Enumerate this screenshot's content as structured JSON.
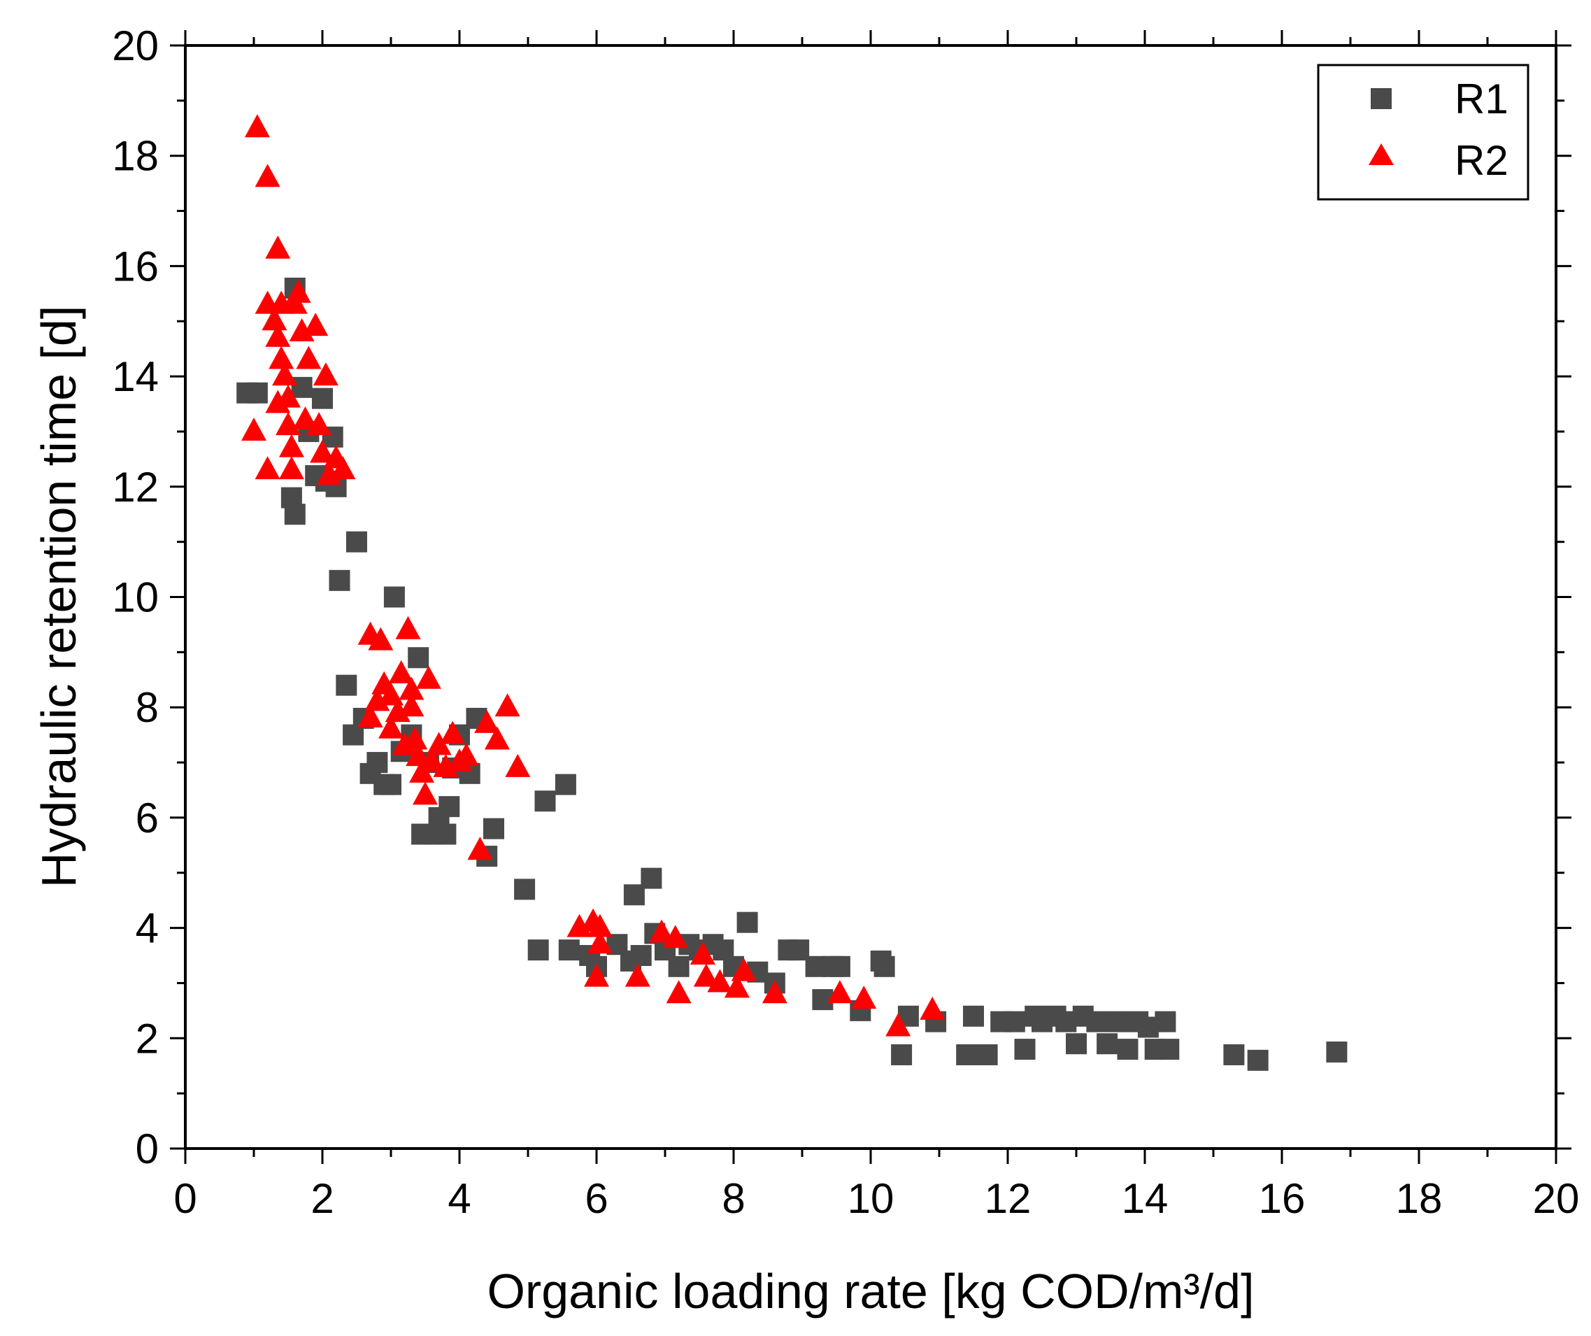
{
  "chart_data": {
    "type": "scatter",
    "title": "",
    "xlabel": "Organic loading rate [kg COD/m³/d]",
    "ylabel": "Hydraulic retention time [d]",
    "xlim": [
      0,
      20
    ],
    "ylim": [
      0,
      20
    ],
    "xticks": [
      "0",
      "2",
      "4",
      "6",
      "8",
      "10",
      "12",
      "14",
      "16",
      "18",
      "20"
    ],
    "yticks": [
      "0",
      "2",
      "4",
      "6",
      "8",
      "10",
      "12",
      "14",
      "16",
      "18",
      "20"
    ],
    "grid": false,
    "legend_position": "top-right",
    "series": [
      {
        "name": "R1",
        "marker": "square",
        "color": "#4a4a4a",
        "points": [
          [
            0.9,
            13.7
          ],
          [
            1.05,
            13.7
          ],
          [
            1.6,
            15.6
          ],
          [
            1.55,
            11.8
          ],
          [
            1.6,
            11.5
          ],
          [
            1.7,
            13.8
          ],
          [
            1.8,
            13.0
          ],
          [
            1.9,
            12.2
          ],
          [
            2.0,
            13.6
          ],
          [
            2.05,
            12.1
          ],
          [
            2.15,
            12.9
          ],
          [
            2.2,
            12.0
          ],
          [
            2.25,
            10.3
          ],
          [
            2.35,
            8.4
          ],
          [
            2.45,
            7.5
          ],
          [
            2.5,
            11.0
          ],
          [
            2.6,
            7.8
          ],
          [
            2.7,
            6.8
          ],
          [
            2.8,
            7.0
          ],
          [
            2.9,
            6.6
          ],
          [
            3.0,
            6.6
          ],
          [
            3.05,
            10.0
          ],
          [
            3.15,
            7.2
          ],
          [
            3.3,
            7.5
          ],
          [
            3.4,
            8.9
          ],
          [
            3.45,
            5.7
          ],
          [
            3.55,
            7.0
          ],
          [
            3.6,
            5.7
          ],
          [
            3.7,
            6.0
          ],
          [
            3.8,
            5.7
          ],
          [
            3.85,
            6.2
          ],
          [
            3.9,
            6.9
          ],
          [
            4.0,
            7.5
          ],
          [
            4.15,
            6.8
          ],
          [
            4.25,
            7.8
          ],
          [
            4.4,
            5.3
          ],
          [
            4.5,
            5.8
          ],
          [
            4.95,
            4.7
          ],
          [
            5.15,
            3.6
          ],
          [
            5.25,
            6.3
          ],
          [
            5.55,
            6.6
          ],
          [
            5.6,
            3.6
          ],
          [
            5.9,
            3.5
          ],
          [
            6.0,
            3.3
          ],
          [
            6.3,
            3.7
          ],
          [
            6.5,
            3.4
          ],
          [
            6.55,
            4.6
          ],
          [
            6.65,
            3.5
          ],
          [
            6.8,
            4.9
          ],
          [
            6.85,
            3.9
          ],
          [
            7.0,
            3.6
          ],
          [
            7.2,
            3.3
          ],
          [
            7.35,
            3.7
          ],
          [
            7.5,
            3.6
          ],
          [
            7.7,
            3.7
          ],
          [
            7.85,
            3.6
          ],
          [
            8.0,
            3.3
          ],
          [
            8.2,
            4.1
          ],
          [
            8.35,
            3.2
          ],
          [
            8.6,
            3.0
          ],
          [
            8.8,
            3.6
          ],
          [
            8.95,
            3.6
          ],
          [
            9.2,
            3.3
          ],
          [
            9.3,
            2.7
          ],
          [
            9.45,
            3.3
          ],
          [
            9.55,
            3.3
          ],
          [
            9.85,
            2.5
          ],
          [
            10.15,
            3.4
          ],
          [
            10.2,
            3.3
          ],
          [
            10.45,
            1.7
          ],
          [
            10.55,
            2.4
          ],
          [
            10.95,
            2.3
          ],
          [
            11.4,
            1.7
          ],
          [
            11.5,
            2.4
          ],
          [
            11.7,
            1.7
          ],
          [
            11.9,
            2.3
          ],
          [
            12.1,
            2.3
          ],
          [
            12.25,
            1.8
          ],
          [
            12.4,
            2.4
          ],
          [
            12.5,
            2.3
          ],
          [
            12.7,
            2.4
          ],
          [
            12.85,
            2.3
          ],
          [
            13.0,
            1.9
          ],
          [
            13.1,
            2.4
          ],
          [
            13.3,
            2.3
          ],
          [
            13.45,
            1.9
          ],
          [
            13.6,
            2.3
          ],
          [
            13.75,
            1.8
          ],
          [
            13.9,
            2.3
          ],
          [
            14.05,
            2.2
          ],
          [
            14.15,
            1.8
          ],
          [
            14.3,
            2.3
          ],
          [
            14.35,
            1.8
          ],
          [
            15.3,
            1.7
          ],
          [
            15.65,
            1.6
          ],
          [
            16.8,
            1.75
          ]
        ]
      },
      {
        "name": "R2",
        "marker": "triangle",
        "color": "#ff0000",
        "points": [
          [
            1.05,
            18.5
          ],
          [
            1.2,
            17.6
          ],
          [
            1.35,
            16.3
          ],
          [
            1.2,
            15.3
          ],
          [
            1.3,
            15.0
          ],
          [
            1.35,
            14.7
          ],
          [
            1.4,
            14.3
          ],
          [
            1.45,
            14.0
          ],
          [
            1.5,
            13.6
          ],
          [
            1.5,
            13.1
          ],
          [
            1.55,
            12.7
          ],
          [
            1.55,
            12.3
          ],
          [
            1.6,
            15.3
          ],
          [
            1.65,
            15.5
          ],
          [
            1.7,
            14.8
          ],
          [
            1.75,
            13.2
          ],
          [
            1.8,
            14.3
          ],
          [
            1.9,
            14.9
          ],
          [
            1.95,
            13.1
          ],
          [
            2.0,
            12.6
          ],
          [
            2.05,
            14.0
          ],
          [
            2.1,
            12.2
          ],
          [
            2.2,
            12.5
          ],
          [
            2.3,
            12.3
          ],
          [
            1.0,
            13.0
          ],
          [
            1.2,
            12.3
          ],
          [
            1.4,
            15.3
          ],
          [
            1.35,
            13.5
          ],
          [
            2.7,
            9.3
          ],
          [
            2.85,
            9.2
          ],
          [
            2.7,
            7.8
          ],
          [
            2.8,
            8.1
          ],
          [
            2.9,
            8.4
          ],
          [
            3.0,
            7.6
          ],
          [
            3.1,
            7.9
          ],
          [
            3.15,
            8.6
          ],
          [
            3.2,
            7.3
          ],
          [
            3.25,
            9.4
          ],
          [
            3.3,
            8.0
          ],
          [
            3.35,
            7.4
          ],
          [
            3.4,
            7.1
          ],
          [
            3.45,
            6.8
          ],
          [
            3.5,
            6.4
          ],
          [
            3.55,
            8.5
          ],
          [
            3.6,
            7.0
          ],
          [
            3.7,
            7.3
          ],
          [
            3.8,
            6.9
          ],
          [
            3.9,
            7.5
          ],
          [
            4.0,
            7.0
          ],
          [
            4.1,
            7.1
          ],
          [
            4.3,
            5.4
          ],
          [
            4.4,
            7.7
          ],
          [
            4.55,
            7.4
          ],
          [
            4.7,
            8.0
          ],
          [
            4.85,
            6.9
          ],
          [
            3.0,
            8.2
          ],
          [
            3.3,
            8.3
          ],
          [
            5.75,
            4.0
          ],
          [
            5.95,
            4.1
          ],
          [
            6.05,
            4.0
          ],
          [
            6.0,
            3.1
          ],
          [
            6.05,
            3.7
          ],
          [
            6.6,
            3.1
          ],
          [
            6.95,
            3.9
          ],
          [
            7.15,
            3.8
          ],
          [
            7.2,
            2.8
          ],
          [
            7.55,
            3.5
          ],
          [
            7.6,
            3.1
          ],
          [
            7.8,
            3.0
          ],
          [
            8.05,
            2.9
          ],
          [
            8.15,
            3.2
          ],
          [
            8.6,
            2.8
          ],
          [
            9.55,
            2.8
          ],
          [
            9.9,
            2.7
          ],
          [
            10.4,
            2.2
          ],
          [
            10.9,
            2.5
          ]
        ]
      }
    ]
  }
}
